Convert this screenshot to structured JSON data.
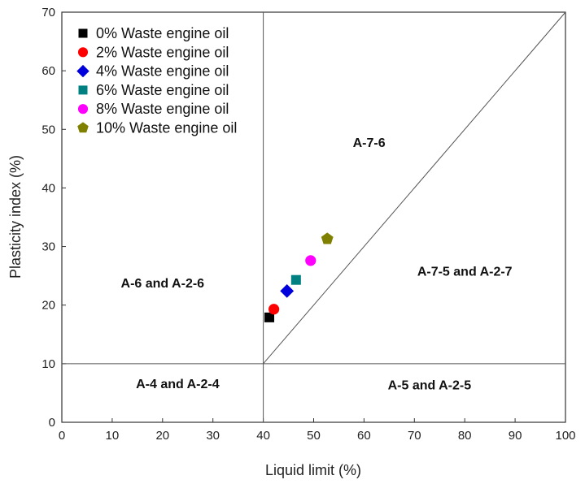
{
  "chart_data": {
    "type": "scatter",
    "xlabel": "Liquid limit (%)",
    "ylabel": "Plasticity index (%)",
    "xlim": [
      0,
      100
    ],
    "ylim": [
      0,
      70
    ],
    "xticks": [
      0,
      10,
      20,
      30,
      40,
      50,
      60,
      70,
      80,
      90,
      100
    ],
    "yticks": [
      0,
      10,
      20,
      30,
      40,
      50,
      60,
      70
    ],
    "grid": false,
    "legend_placement": "top-left",
    "series": [
      {
        "name": "0% Waste engine oil",
        "marker": "square",
        "color": "#000000",
        "x": 41.2,
        "y": 17.9
      },
      {
        "name": "2% Waste engine oil",
        "marker": "circle",
        "color": "#ff0000",
        "x": 42.1,
        "y": 19.3
      },
      {
        "name": "4% Waste engine oil",
        "marker": "diamond",
        "color": "#0000dd",
        "x": 44.7,
        "y": 22.4
      },
      {
        "name": "6% Waste engine oil",
        "marker": "square",
        "color": "#008080",
        "x": 46.5,
        "y": 24.3
      },
      {
        "name": "8% Waste engine oil",
        "marker": "circle",
        "color": "#ff00ff",
        "x": 49.4,
        "y": 27.6
      },
      {
        "name": "10% Waste engine oil",
        "marker": "pentagon",
        "color": "#808000",
        "x": 52.7,
        "y": 31.3
      }
    ],
    "boundary_lines": [
      {
        "from": [
          40,
          0
        ],
        "to": [
          40,
          70
        ]
      },
      {
        "from": [
          0,
          10
        ],
        "to": [
          100,
          10
        ]
      },
      {
        "from": [
          40,
          10
        ],
        "to": [
          100,
          70
        ]
      }
    ],
    "regions": [
      {
        "label": "A-7-6",
        "x": 61,
        "y": 47
      },
      {
        "label": "A-6  and  A-2-6",
        "x": 20,
        "y": 23
      },
      {
        "label": "A-7-5  and  A-2-7",
        "x": 80,
        "y": 25
      },
      {
        "label": "A-4  and  A-2-4",
        "x": 23,
        "y": 5.8
      },
      {
        "label": "A-5  and  A-2-5",
        "x": 73,
        "y": 5.6
      }
    ]
  }
}
